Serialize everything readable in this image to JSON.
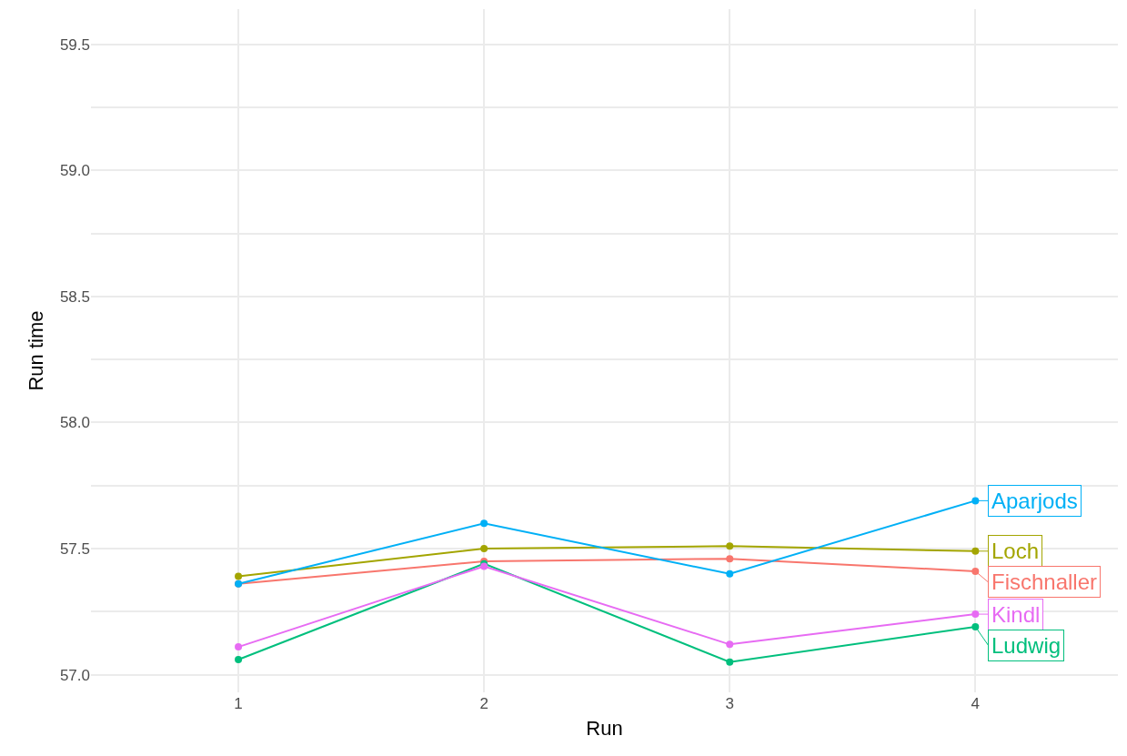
{
  "chart_data": {
    "type": "line",
    "xlabel": "Run",
    "ylabel": "Run time",
    "x": [
      1,
      2,
      3,
      4
    ],
    "series": [
      {
        "name": "Fischnaller",
        "color": "#f8766d",
        "values": [
          57.36,
          57.45,
          57.46,
          57.41
        ]
      },
      {
        "name": "Loch",
        "color": "#a3a500",
        "values": [
          57.39,
          57.5,
          57.51,
          57.49
        ]
      },
      {
        "name": "Ludwig",
        "color": "#00bf7d",
        "values": [
          57.06,
          57.44,
          57.05,
          57.19
        ]
      },
      {
        "name": "Aparjods",
        "color": "#00b0f6",
        "values": [
          57.36,
          57.6,
          57.4,
          57.69
        ]
      },
      {
        "name": "Kindl",
        "color": "#e76bf3",
        "values": [
          57.11,
          57.43,
          57.12,
          57.24
        ]
      }
    ],
    "xlim": [
      0.4,
      4.58
    ],
    "xticks": [
      1,
      2,
      3,
      4
    ],
    "ylim": [
      56.93,
      59.64
    ],
    "yticks": [
      {
        "value": 57,
        "label": "57.0"
      },
      {
        "value": 57.25,
        "label": null
      },
      {
        "value": 57.5,
        "label": "57.5"
      },
      {
        "value": 57.75,
        "label": null
      },
      {
        "value": 58,
        "label": "58.0"
      },
      {
        "value": 58.25,
        "label": null
      },
      {
        "value": 58.5,
        "label": "58.5"
      },
      {
        "value": 58.75,
        "label": null
      },
      {
        "value": 59,
        "label": "59.0"
      },
      {
        "value": 59.25,
        "label": null
      },
      {
        "value": 59.5,
        "label": "59.5"
      }
    ],
    "grid": true,
    "legend": "right",
    "marker": "circle",
    "line_style": "solid"
  }
}
